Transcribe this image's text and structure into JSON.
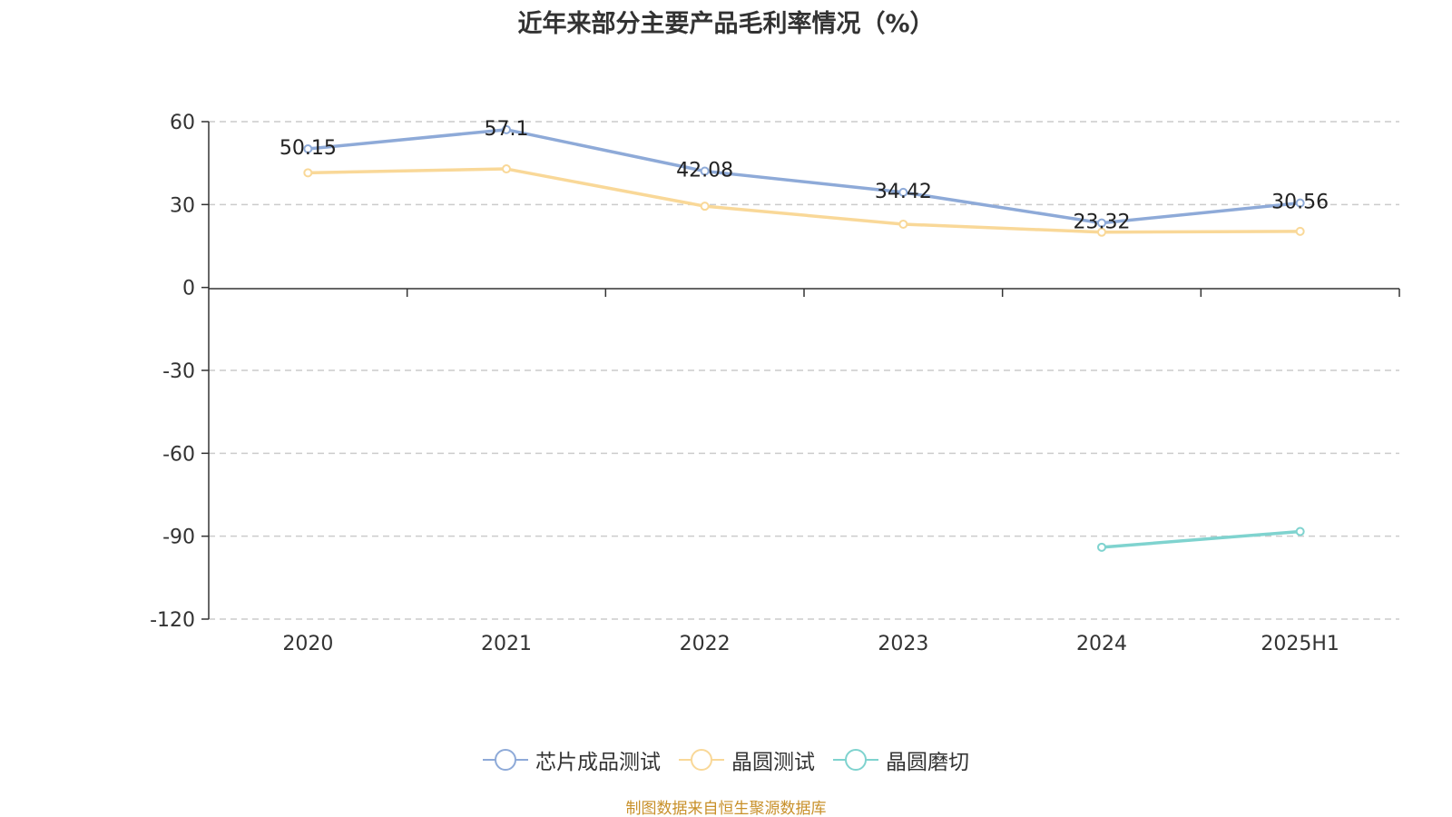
{
  "title": "近年来部分主要产品毛利率情况（%）",
  "source": "制图数据来自恒生聚源数据库",
  "chart_data": {
    "type": "line",
    "categories": [
      "2020",
      "2021",
      "2022",
      "2023",
      "2024",
      "2025H1"
    ],
    "ylim": [
      -120,
      60
    ],
    "yticks": [
      60,
      30,
      0,
      -30,
      -60,
      -90,
      -120
    ],
    "grid": true,
    "legend_position": "bottom",
    "series": [
      {
        "name": "芯片成品测试",
        "color": "#8eaad8",
        "values": [
          50.15,
          57.1,
          42.08,
          34.42,
          23.32,
          30.56
        ],
        "labels": [
          "50.15",
          "57.1",
          "42.08",
          "34.42",
          "23.32",
          "30.56"
        ]
      },
      {
        "name": "晶圆测试",
        "color": "#f9d898",
        "values": [
          41.5,
          42.9,
          29.4,
          22.9,
          20.0,
          20.3
        ],
        "labels": []
      },
      {
        "name": "晶圆磨切",
        "color": "#7fd3cf",
        "values": [
          null,
          null,
          null,
          null,
          -94.0,
          -88.3
        ],
        "labels": []
      }
    ]
  }
}
